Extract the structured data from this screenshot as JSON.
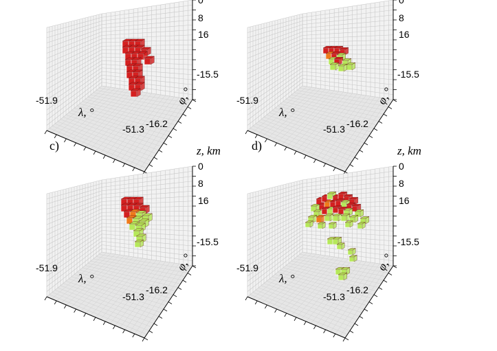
{
  "figure": {
    "panels": [
      {
        "id": "a",
        "letter": "",
        "show_z_title": false,
        "z_ticks": [
          "0",
          "8",
          "16"
        ],
        "lat_ticks": [
          "-15.5",
          "-16.2"
        ],
        "lon_ticks": [
          "-51.9",
          "-51.3"
        ]
      },
      {
        "id": "b",
        "letter": "",
        "show_z_title": false,
        "z_ticks": [
          "0",
          "8",
          "16"
        ],
        "lat_ticks": [
          "-15.5",
          "-16.2"
        ],
        "lon_ticks": [
          "-51.9",
          "-51.3"
        ]
      },
      {
        "id": "c",
        "letter": "c)",
        "show_z_title": true,
        "z_ticks": [
          "0",
          "8",
          "16"
        ],
        "lat_ticks": [
          "-15.5",
          "-16.2"
        ],
        "lon_ticks": [
          "-51.9",
          "-51.3"
        ]
      },
      {
        "id": "d",
        "letter": "d)",
        "show_z_title": true,
        "z_ticks": [
          "0",
          "8",
          "16"
        ],
        "lat_ticks": [
          "-15.5",
          "-16.2"
        ],
        "lon_ticks": [
          "-51.9",
          "-51.3"
        ]
      }
    ],
    "axis_titles": {
      "z": "z, km",
      "lambda": "λ, °",
      "phi": "φ, °"
    },
    "colors": {
      "high": "#d42020",
      "mid": "#f07a1a",
      "low": "#b6e85a",
      "grid": "#c8c8c8",
      "floor": "#e6e6e6"
    }
  }
}
